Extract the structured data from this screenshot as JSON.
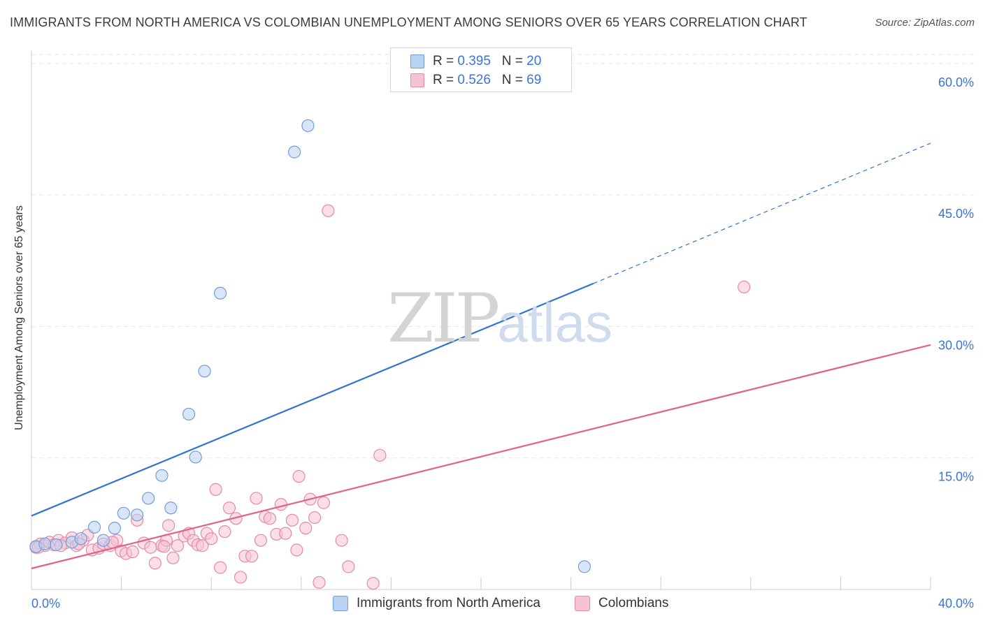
{
  "title": "IMMIGRANTS FROM NORTH AMERICA VS COLOMBIAN UNEMPLOYMENT AMONG SENIORS OVER 65 YEARS CORRELATION CHART",
  "source": "Source: ZipAtlas.com",
  "watermark": {
    "zip": "ZIP",
    "atlas": "atlas"
  },
  "legend_top": [
    {
      "r_label": "R = ",
      "r_value": "0.395",
      "n_label": "N = ",
      "n_value": "20"
    },
    {
      "r_label": "R = ",
      "r_value": "0.526",
      "n_label": "N = ",
      "n_value": "69"
    }
  ],
  "colors": {
    "blue_fill": "#b9d2f2",
    "blue_stroke": "#6f9edc",
    "blue_line": "#2e74d0",
    "pink_fill": "#f7c3d2",
    "pink_stroke": "#e58aa6",
    "pink_line": "#e0608e",
    "grid": "#e6e6e6",
    "tick_label": "#3a74d6"
  },
  "chart_data": {
    "type": "scatter",
    "title": "IMMIGRANTS FROM NORTH AMERICA VS COLOMBIAN UNEMPLOYMENT AMONG SENIORS OVER 65 YEARS CORRELATION CHART",
    "xlabel": "",
    "ylabel": "Unemployment Among Seniors over 65 years",
    "xlim": [
      0,
      40
    ],
    "ylim": [
      0,
      61.5
    ],
    "x_tick_labels": [
      "0.0%",
      "40.0%"
    ],
    "y_ticks": [
      15,
      30,
      45,
      60
    ],
    "y_tick_labels": [
      "15.0%",
      "30.0%",
      "45.0%",
      "60.0%"
    ],
    "grid": true,
    "legend_position": "top-center",
    "series": [
      {
        "name": "Immigrants from North America",
        "color": "#6f9edc",
        "trend": {
          "x": [
            0,
            25
          ],
          "y": [
            8.4,
            34.9
          ],
          "extended_to": [
            40,
            50.9
          ]
        },
        "points": [
          [
            0.2,
            4.9
          ],
          [
            0.6,
            5.2
          ],
          [
            1.1,
            5.1
          ],
          [
            1.8,
            5.4
          ],
          [
            2.2,
            5.8
          ],
          [
            2.8,
            7.1
          ],
          [
            3.2,
            5.6
          ],
          [
            3.7,
            7.0
          ],
          [
            4.1,
            8.7
          ],
          [
            4.7,
            8.5
          ],
          [
            5.2,
            10.4
          ],
          [
            5.8,
            13.0
          ],
          [
            6.2,
            9.3
          ],
          [
            7.0,
            20.0
          ],
          [
            7.3,
            15.1
          ],
          [
            7.7,
            24.9
          ],
          [
            8.4,
            33.8
          ],
          [
            11.7,
            49.9
          ],
          [
            12.3,
            52.9
          ],
          [
            24.6,
            2.6
          ]
        ]
      },
      {
        "name": "Colombians",
        "color": "#e58aa6",
        "trend": {
          "x": [
            0,
            40
          ],
          "y": [
            2.4,
            27.9
          ]
        },
        "points": [
          [
            0.2,
            4.8
          ],
          [
            0.4,
            5.2
          ],
          [
            0.6,
            5.0
          ],
          [
            0.8,
            5.4
          ],
          [
            1.0,
            5.1
          ],
          [
            1.2,
            5.6
          ],
          [
            1.5,
            5.3
          ],
          [
            1.8,
            5.9
          ],
          [
            2.0,
            5.0
          ],
          [
            2.3,
            5.6
          ],
          [
            2.5,
            6.2
          ],
          [
            2.7,
            4.5
          ],
          [
            3.0,
            4.7
          ],
          [
            3.2,
            5.2
          ],
          [
            3.5,
            5.0
          ],
          [
            3.8,
            5.6
          ],
          [
            4.0,
            4.4
          ],
          [
            4.2,
            4.1
          ],
          [
            4.5,
            4.3
          ],
          [
            4.7,
            7.9
          ],
          [
            5.0,
            5.3
          ],
          [
            5.3,
            4.8
          ],
          [
            5.5,
            3.0
          ],
          [
            5.8,
            5.0
          ],
          [
            6.0,
            5.6
          ],
          [
            6.1,
            7.3
          ],
          [
            6.3,
            3.6
          ],
          [
            6.5,
            5.0
          ],
          [
            6.8,
            6.1
          ],
          [
            7.0,
            6.4
          ],
          [
            7.2,
            5.6
          ],
          [
            7.4,
            5.1
          ],
          [
            7.6,
            5.0
          ],
          [
            7.8,
            6.4
          ],
          [
            8.0,
            5.8
          ],
          [
            8.2,
            11.4
          ],
          [
            8.4,
            2.5
          ],
          [
            8.6,
            6.6
          ],
          [
            8.8,
            9.3
          ],
          [
            9.1,
            8.1
          ],
          [
            9.3,
            1.4
          ],
          [
            9.5,
            3.8
          ],
          [
            9.8,
            3.8
          ],
          [
            10.0,
            10.4
          ],
          [
            10.2,
            5.6
          ],
          [
            10.4,
            8.3
          ],
          [
            10.6,
            8.1
          ],
          [
            10.9,
            6.3
          ],
          [
            11.1,
            9.7
          ],
          [
            11.3,
            6.4
          ],
          [
            11.6,
            7.9
          ],
          [
            11.8,
            4.5
          ],
          [
            11.9,
            12.9
          ],
          [
            12.2,
            7.0
          ],
          [
            12.4,
            10.3
          ],
          [
            12.6,
            8.2
          ],
          [
            12.8,
            0.8
          ],
          [
            13.0,
            9.9
          ],
          [
            13.2,
            43.2
          ],
          [
            13.8,
            5.6
          ],
          [
            14.1,
            2.6
          ],
          [
            15.2,
            0.7
          ],
          [
            15.5,
            15.3
          ],
          [
            31.7,
            34.5
          ],
          [
            0.3,
            4.8
          ],
          [
            1.3,
            5.0
          ],
          [
            2.1,
            5.2
          ],
          [
            3.6,
            5.4
          ],
          [
            5.9,
            4.9
          ]
        ]
      }
    ]
  }
}
